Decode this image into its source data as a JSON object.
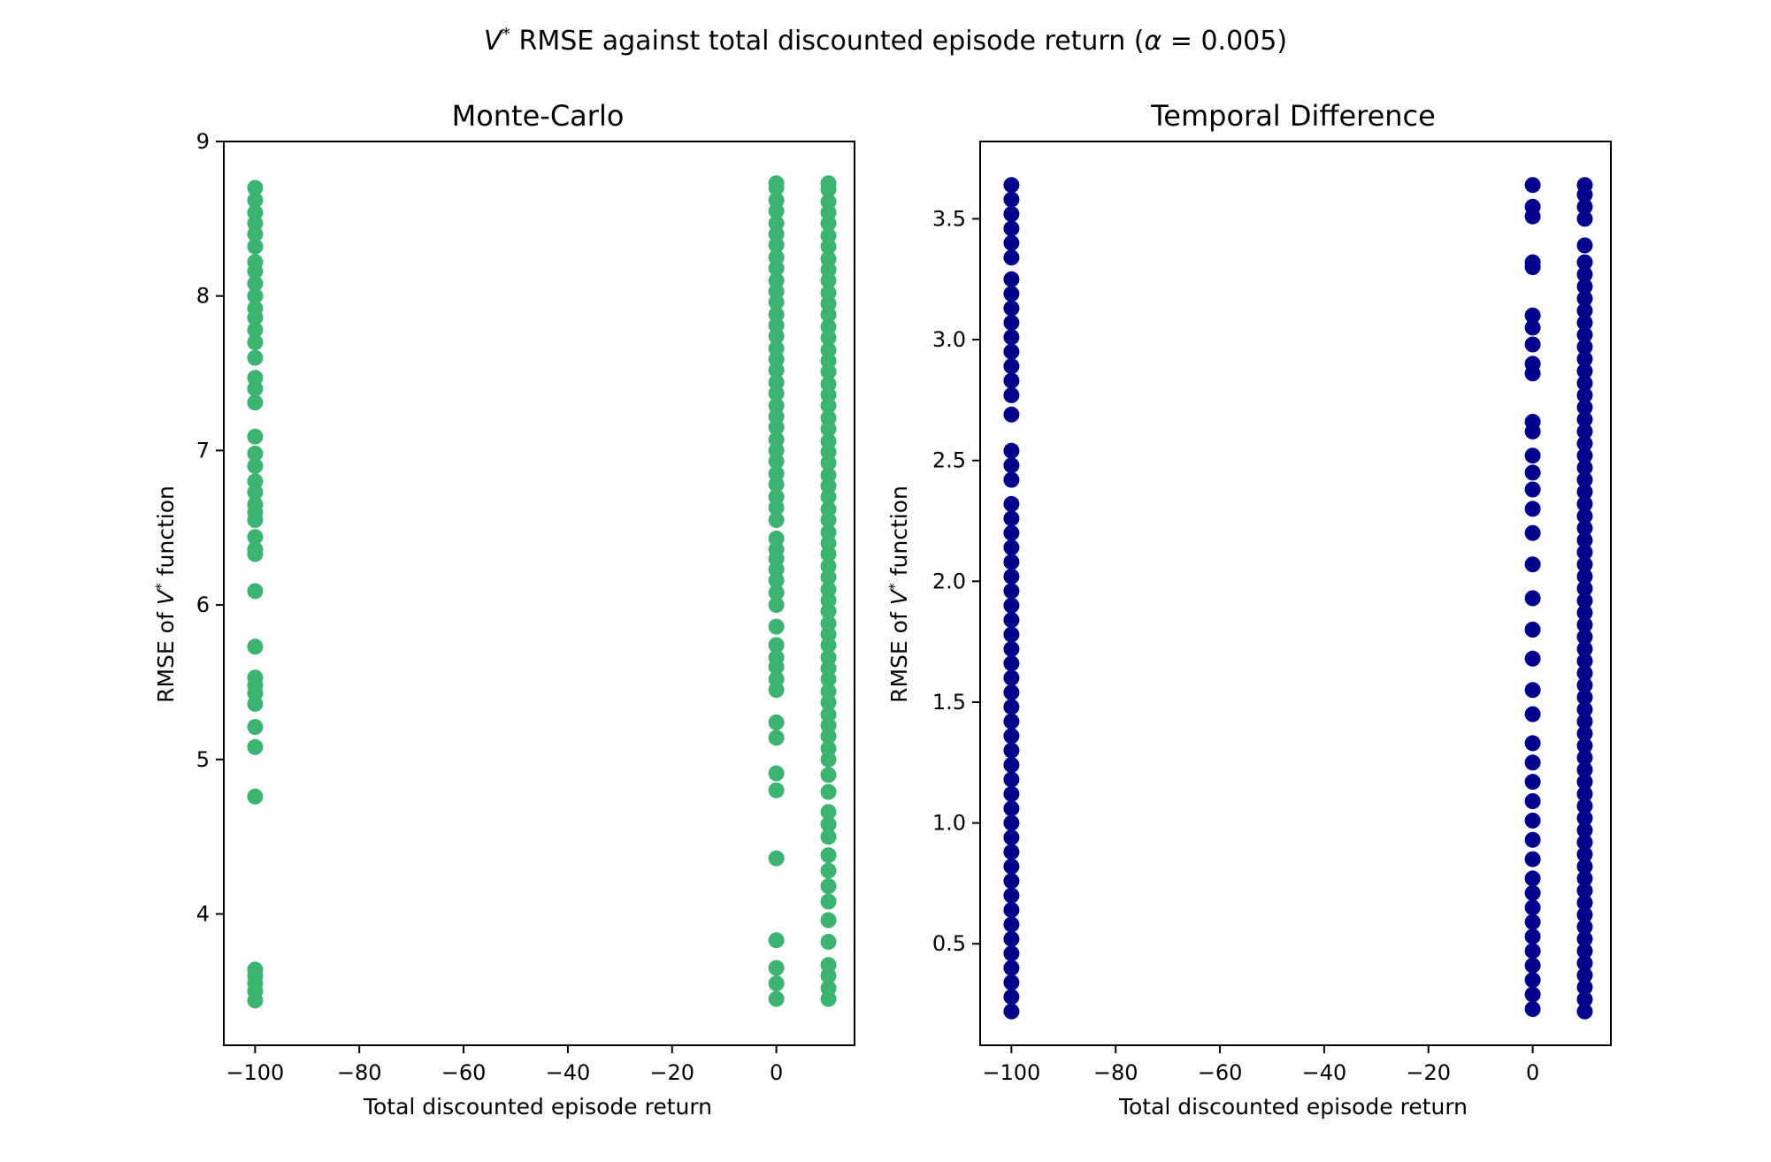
{
  "figure_title": {
    "var": "V",
    "sup": "*",
    "text": " RMSE against total discounted episode return (",
    "alpha": "α",
    "eq": " = 0.005)"
  },
  "chart_data": [
    {
      "type": "scatter",
      "title": "Monte-Carlo",
      "xlabel": "Total discounted episode return",
      "ylabel": {
        "pre": "RMSE of ",
        "var": "V",
        "sup": "*",
        "post": " function"
      },
      "xlim": [
        -106,
        15
      ],
      "ylim": [
        3.15,
        9.0
      ],
      "xticks": [
        -100,
        -80,
        -60,
        -40,
        -20,
        0
      ],
      "xtick_labels": [
        "−100",
        "−80",
        "−60",
        "−40",
        "−20",
        "0"
      ],
      "yticks": [
        4,
        5,
        6,
        7,
        8,
        9
      ],
      "ytick_labels": [
        "4",
        "5",
        "6",
        "7",
        "8",
        "9"
      ],
      "color": "#3cb371",
      "grid": false,
      "legend": false,
      "x_values": [
        -100,
        0,
        10
      ],
      "points": {
        "-100": [
          3.44,
          3.5,
          3.55,
          3.6,
          3.64,
          4.76,
          5.08,
          5.21,
          5.36,
          5.43,
          5.48,
          5.53,
          5.73,
          6.09,
          6.33,
          6.36,
          6.44,
          6.55,
          6.6,
          6.65,
          6.73,
          6.8,
          6.9,
          6.98,
          7.09,
          7.31,
          7.4,
          7.47,
          7.6,
          7.7,
          7.78,
          7.86,
          7.92,
          8.0,
          8.08,
          8.16,
          8.22,
          8.32,
          8.4,
          8.47,
          8.54,
          8.62,
          8.7
        ],
        "0": [
          3.45,
          3.55,
          3.65,
          3.83,
          4.36,
          4.8,
          4.91,
          5.14,
          5.24,
          5.45,
          5.52,
          5.6,
          5.66,
          5.74,
          5.86,
          6.0,
          6.08,
          6.16,
          6.23,
          6.3,
          6.36,
          6.43,
          6.55,
          6.63,
          6.7,
          6.78,
          6.85,
          6.93,
          7.0,
          7.07,
          7.15,
          7.22,
          7.29,
          7.37,
          7.44,
          7.52,
          7.59,
          7.66,
          7.74,
          7.81,
          7.88,
          7.96,
          8.03,
          8.1,
          8.18,
          8.25,
          8.33,
          8.4,
          8.47,
          8.55,
          8.62,
          8.7,
          8.73
        ],
        "10": [
          3.45,
          3.52,
          3.6,
          3.67,
          3.82,
          3.96,
          4.08,
          4.18,
          4.28,
          4.38,
          4.5,
          4.58,
          4.66,
          4.79,
          4.9,
          5.0,
          5.07,
          5.15,
          5.22,
          5.29,
          5.37,
          5.44,
          5.52,
          5.59,
          5.66,
          5.74,
          5.81,
          5.88,
          5.96,
          6.03,
          6.1,
          6.18,
          6.25,
          6.33,
          6.4,
          6.47,
          6.55,
          6.62,
          6.7,
          6.77,
          6.84,
          6.92,
          6.99,
          7.06,
          7.14,
          7.21,
          7.29,
          7.36,
          7.43,
          7.51,
          7.58,
          7.65,
          7.73,
          7.8,
          7.88,
          7.95,
          8.02,
          8.1,
          8.17,
          8.24,
          8.32,
          8.39,
          8.47,
          8.54,
          8.61,
          8.69,
          8.73
        ]
      }
    },
    {
      "type": "scatter",
      "title": "Temporal Difference",
      "xlabel": "Total discounted episode return",
      "ylabel": {
        "pre": "RMSE of ",
        "var": "V",
        "sup": "*",
        "post": " function"
      },
      "xlim": [
        -106,
        15
      ],
      "ylim": [
        0.08,
        3.82
      ],
      "xticks": [
        -100,
        -80,
        -60,
        -40,
        -20,
        0
      ],
      "xtick_labels": [
        "−100",
        "−80",
        "−60",
        "−40",
        "−20",
        "0"
      ],
      "yticks": [
        0.5,
        1.0,
        1.5,
        2.0,
        2.5,
        3.0,
        3.5
      ],
      "ytick_labels": [
        "0.5",
        "1.0",
        "1.5",
        "2.0",
        "2.5",
        "3.0",
        "3.5"
      ],
      "color": "#00008b",
      "grid": false,
      "legend": false,
      "x_values": [
        -100,
        0,
        10
      ],
      "points": {
        "-100": [
          0.22,
          0.28,
          0.34,
          0.4,
          0.46,
          0.52,
          0.58,
          0.64,
          0.7,
          0.76,
          0.82,
          0.88,
          0.94,
          1.0,
          1.06,
          1.12,
          1.18,
          1.24,
          1.3,
          1.36,
          1.42,
          1.48,
          1.54,
          1.6,
          1.66,
          1.72,
          1.78,
          1.84,
          1.9,
          1.96,
          2.02,
          2.08,
          2.14,
          2.2,
          2.26,
          2.32,
          2.42,
          2.48,
          2.54,
          2.69,
          2.77,
          2.83,
          2.89,
          2.95,
          3.01,
          3.07,
          3.13,
          3.19,
          3.25,
          3.34,
          3.4,
          3.46,
          3.52,
          3.58,
          3.64
        ],
        "0": [
          0.23,
          0.29,
          0.35,
          0.41,
          0.47,
          0.53,
          0.59,
          0.65,
          0.71,
          0.77,
          0.85,
          0.93,
          1.01,
          1.09,
          1.17,
          1.25,
          1.33,
          1.45,
          1.55,
          1.68,
          1.8,
          1.93,
          2.07,
          2.2,
          2.3,
          2.38,
          2.45,
          2.52,
          2.62,
          2.66,
          2.86,
          2.9,
          2.98,
          3.05,
          3.1,
          3.3,
          3.32,
          3.51,
          3.55,
          3.64
        ],
        "10": [
          0.22,
          0.27,
          0.32,
          0.37,
          0.42,
          0.47,
          0.52,
          0.57,
          0.62,
          0.67,
          0.72,
          0.77,
          0.82,
          0.87,
          0.92,
          0.97,
          1.02,
          1.07,
          1.12,
          1.17,
          1.22,
          1.27,
          1.32,
          1.37,
          1.42,
          1.47,
          1.52,
          1.57,
          1.62,
          1.67,
          1.72,
          1.77,
          1.82,
          1.87,
          1.92,
          1.97,
          2.02,
          2.07,
          2.12,
          2.17,
          2.22,
          2.27,
          2.32,
          2.37,
          2.42,
          2.47,
          2.52,
          2.57,
          2.62,
          2.67,
          2.72,
          2.77,
          2.82,
          2.87,
          2.92,
          2.97,
          3.02,
          3.07,
          3.12,
          3.17,
          3.22,
          3.27,
          3.32,
          3.39,
          3.5,
          3.55,
          3.6,
          3.64
        ]
      }
    }
  ]
}
